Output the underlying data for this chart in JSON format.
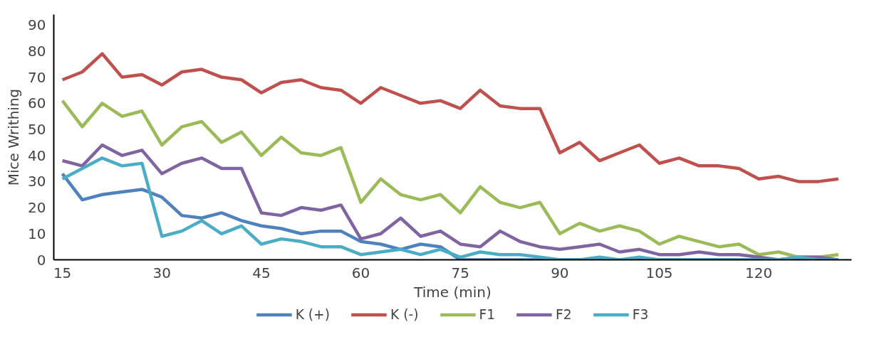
{
  "chart_data": {
    "type": "line",
    "xlabel": "Time (min)",
    "ylabel": "Mice Writhing",
    "x": [
      15,
      18,
      21,
      24,
      27,
      30,
      33,
      36,
      39,
      42,
      45,
      48,
      51,
      54,
      57,
      60,
      63,
      66,
      69,
      72,
      75,
      78,
      81,
      84,
      87,
      90,
      93,
      96,
      99,
      102,
      105,
      108,
      111,
      114,
      117,
      120,
      123,
      126,
      129,
      132
    ],
    "series": [
      {
        "name": "K (+)",
        "color": "#4f81bd",
        "values": [
          33,
          23,
          25,
          26,
          27,
          24,
          17,
          16,
          18,
          15,
          13,
          12,
          10,
          11,
          11,
          7,
          6,
          4,
          6,
          5,
          0,
          0,
          0,
          0,
          0,
          0,
          0,
          0,
          0,
          0,
          0,
          0,
          0,
          0,
          0,
          0,
          0,
          0,
          0,
          0
        ]
      },
      {
        "name": "K (-)",
        "color": "#c0504d",
        "values": [
          69,
          72,
          79,
          70,
          71,
          67,
          72,
          73,
          70,
          69,
          64,
          68,
          69,
          66,
          65,
          60,
          66,
          63,
          60,
          61,
          58,
          65,
          59,
          58,
          58,
          41,
          45,
          38,
          41,
          44,
          37,
          39,
          36,
          36,
          35,
          31,
          32,
          30,
          30,
          31
        ]
      },
      {
        "name": "F1",
        "color": "#9bbb59",
        "values": [
          61,
          51,
          60,
          55,
          57,
          44,
          51,
          53,
          45,
          49,
          40,
          47,
          41,
          40,
          43,
          22,
          31,
          25,
          23,
          25,
          18,
          28,
          22,
          20,
          22,
          10,
          14,
          11,
          13,
          11,
          6,
          9,
          7,
          5,
          6,
          2,
          3,
          1,
          1,
          2
        ]
      },
      {
        "name": "F2",
        "color": "#8064a2",
        "values": [
          38,
          36,
          44,
          40,
          42,
          33,
          37,
          39,
          35,
          35,
          18,
          17,
          20,
          19,
          21,
          8,
          10,
          16,
          9,
          11,
          6,
          5,
          11,
          7,
          5,
          4,
          5,
          6,
          3,
          4,
          2,
          2,
          3,
          2,
          2,
          1,
          0,
          1,
          1,
          0
        ]
      },
      {
        "name": "F3",
        "color": "#4bacc6",
        "values": [
          31,
          35,
          39,
          36,
          37,
          9,
          11,
          15,
          10,
          13,
          6,
          8,
          7,
          5,
          5,
          2,
          3,
          4,
          2,
          4,
          1,
          3,
          2,
          2,
          1,
          0,
          0,
          1,
          0,
          1,
          0,
          0,
          0,
          0,
          0,
          0,
          0,
          1,
          0,
          0
        ]
      }
    ],
    "xlim": [
      13.7,
      134
    ],
    "xticks": [
      15,
      30,
      45,
      60,
      75,
      90,
      105,
      120
    ],
    "ylim": [
      0,
      94
    ],
    "yticks": [
      0,
      10,
      20,
      30,
      40,
      50,
      60,
      70,
      80,
      90
    ],
    "grid": false,
    "legend": "bottom",
    "marker": "none",
    "line_style": "solid"
  }
}
